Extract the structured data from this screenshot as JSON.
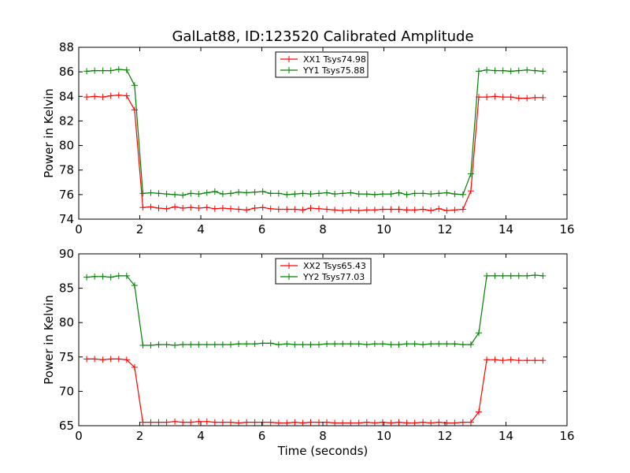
{
  "figure": {
    "title": "GalLat88, ID:123520 Calibrated Amplitude",
    "background": "#ffffff"
  },
  "chart_data": [
    {
      "type": "line",
      "title": "GalLat88, ID:123520 Calibrated Amplitude",
      "xlabel": "",
      "ylabel": "Power in Kelvin",
      "xlim": [
        0,
        16
      ],
      "ylim": [
        74,
        88
      ],
      "xticks": [
        0,
        2,
        4,
        6,
        8,
        10,
        12,
        14,
        16
      ],
      "yticks": [
        74,
        76,
        78,
        80,
        82,
        84,
        86,
        88
      ],
      "grid": false,
      "legend_position": "top-center",
      "x": [
        0.26,
        0.52,
        0.79,
        1.05,
        1.31,
        1.57,
        1.83,
        2.1,
        2.36,
        2.62,
        2.88,
        3.15,
        3.41,
        3.67,
        3.93,
        4.2,
        4.46,
        4.72,
        4.98,
        5.24,
        5.5,
        5.77,
        6.03,
        6.29,
        6.55,
        6.82,
        7.08,
        7.34,
        7.6,
        7.87,
        8.13,
        8.39,
        8.65,
        8.91,
        9.18,
        9.44,
        9.7,
        9.96,
        10.23,
        10.49,
        10.75,
        11.01,
        11.28,
        11.54,
        11.8,
        12.06,
        12.32,
        12.59,
        12.85,
        13.11,
        13.37,
        13.64,
        13.9,
        14.16,
        14.42,
        14.69,
        14.95,
        15.21
      ],
      "series": [
        {
          "name": "XX1 Tsys74.98",
          "color": "#ff0000",
          "values": [
            83.95,
            84.0,
            83.95,
            84.05,
            84.1,
            84.05,
            82.9,
            74.95,
            75.0,
            74.9,
            74.85,
            75.0,
            74.9,
            74.95,
            74.9,
            74.95,
            74.85,
            74.9,
            74.85,
            74.8,
            74.75,
            74.9,
            74.95,
            74.85,
            74.8,
            74.8,
            74.8,
            74.75,
            74.9,
            74.85,
            74.8,
            74.75,
            74.7,
            74.75,
            74.7,
            74.75,
            74.75,
            74.8,
            74.8,
            74.8,
            74.75,
            74.75,
            74.8,
            74.7,
            74.85,
            74.7,
            74.75,
            74.8,
            76.3,
            83.95,
            83.95,
            84.0,
            83.95,
            83.95,
            83.85,
            83.85,
            83.9,
            83.9
          ],
          "marker": "+"
        },
        {
          "name": "YY1 Tsys75.88",
          "color": "#008000",
          "values": [
            86.05,
            86.1,
            86.1,
            86.1,
            86.2,
            86.15,
            84.9,
            76.1,
            76.15,
            76.1,
            76.05,
            76.0,
            75.95,
            76.1,
            76.05,
            76.15,
            76.25,
            76.05,
            76.1,
            76.2,
            76.15,
            76.2,
            76.25,
            76.1,
            76.1,
            76.0,
            76.05,
            76.1,
            76.05,
            76.1,
            76.15,
            76.05,
            76.1,
            76.15,
            76.05,
            76.05,
            76.0,
            76.05,
            76.05,
            76.15,
            76.0,
            76.1,
            76.1,
            76.05,
            76.1,
            76.15,
            76.05,
            76.0,
            77.7,
            86.05,
            86.15,
            86.1,
            86.1,
            86.05,
            86.1,
            86.15,
            86.1,
            86.05
          ],
          "marker": "+"
        }
      ]
    },
    {
      "type": "line",
      "title": "",
      "xlabel": "Time (seconds)",
      "ylabel": "Power in Kelvin",
      "xlim": [
        0,
        16
      ],
      "ylim": [
        65,
        90
      ],
      "xticks": [
        0,
        2,
        4,
        6,
        8,
        10,
        12,
        14,
        16
      ],
      "yticks": [
        65,
        70,
        75,
        80,
        85,
        90
      ],
      "grid": false,
      "legend_position": "top-center",
      "x": [
        0.26,
        0.52,
        0.79,
        1.05,
        1.31,
        1.57,
        1.83,
        2.1,
        2.36,
        2.62,
        2.88,
        3.15,
        3.41,
        3.67,
        3.93,
        4.2,
        4.46,
        4.72,
        4.98,
        5.24,
        5.5,
        5.77,
        6.03,
        6.29,
        6.55,
        6.82,
        7.08,
        7.34,
        7.6,
        7.87,
        8.13,
        8.39,
        8.65,
        8.91,
        9.18,
        9.44,
        9.7,
        9.96,
        10.23,
        10.49,
        10.75,
        11.01,
        11.28,
        11.54,
        11.8,
        12.06,
        12.32,
        12.59,
        12.85,
        13.11,
        13.37,
        13.64,
        13.9,
        14.16,
        14.42,
        14.69,
        14.95,
        15.21
      ],
      "series": [
        {
          "name": "XX2 Tsys65.43",
          "color": "#ff0000",
          "values": [
            74.7,
            74.7,
            74.6,
            74.7,
            74.7,
            74.6,
            73.5,
            65.5,
            65.5,
            65.5,
            65.5,
            65.6,
            65.5,
            65.5,
            65.6,
            65.6,
            65.5,
            65.5,
            65.5,
            65.4,
            65.5,
            65.5,
            65.5,
            65.5,
            65.4,
            65.4,
            65.5,
            65.4,
            65.5,
            65.5,
            65.5,
            65.4,
            65.4,
            65.4,
            65.4,
            65.5,
            65.4,
            65.5,
            65.4,
            65.5,
            65.4,
            65.4,
            65.5,
            65.4,
            65.5,
            65.4,
            65.4,
            65.5,
            65.5,
            67.0,
            74.6,
            74.6,
            74.5,
            74.6,
            74.5,
            74.5,
            74.5,
            74.5
          ],
          "marker": "+"
        },
        {
          "name": "YY2 Tsys77.03",
          "color": "#008000",
          "values": [
            86.6,
            86.7,
            86.7,
            86.6,
            86.8,
            86.8,
            85.4,
            76.7,
            76.7,
            76.8,
            76.8,
            76.7,
            76.8,
            76.8,
            76.8,
            76.8,
            76.8,
            76.8,
            76.8,
            76.9,
            76.9,
            76.9,
            77.0,
            77.0,
            76.8,
            76.9,
            76.8,
            76.8,
            76.8,
            76.8,
            76.9,
            76.9,
            76.9,
            76.9,
            76.9,
            76.8,
            76.9,
            76.9,
            76.8,
            76.8,
            76.9,
            76.9,
            76.8,
            76.9,
            76.9,
            76.9,
            76.9,
            76.8,
            76.8,
            78.5,
            86.8,
            86.8,
            86.8,
            86.8,
            86.8,
            86.8,
            86.9,
            86.8
          ],
          "marker": "+"
        }
      ]
    }
  ]
}
